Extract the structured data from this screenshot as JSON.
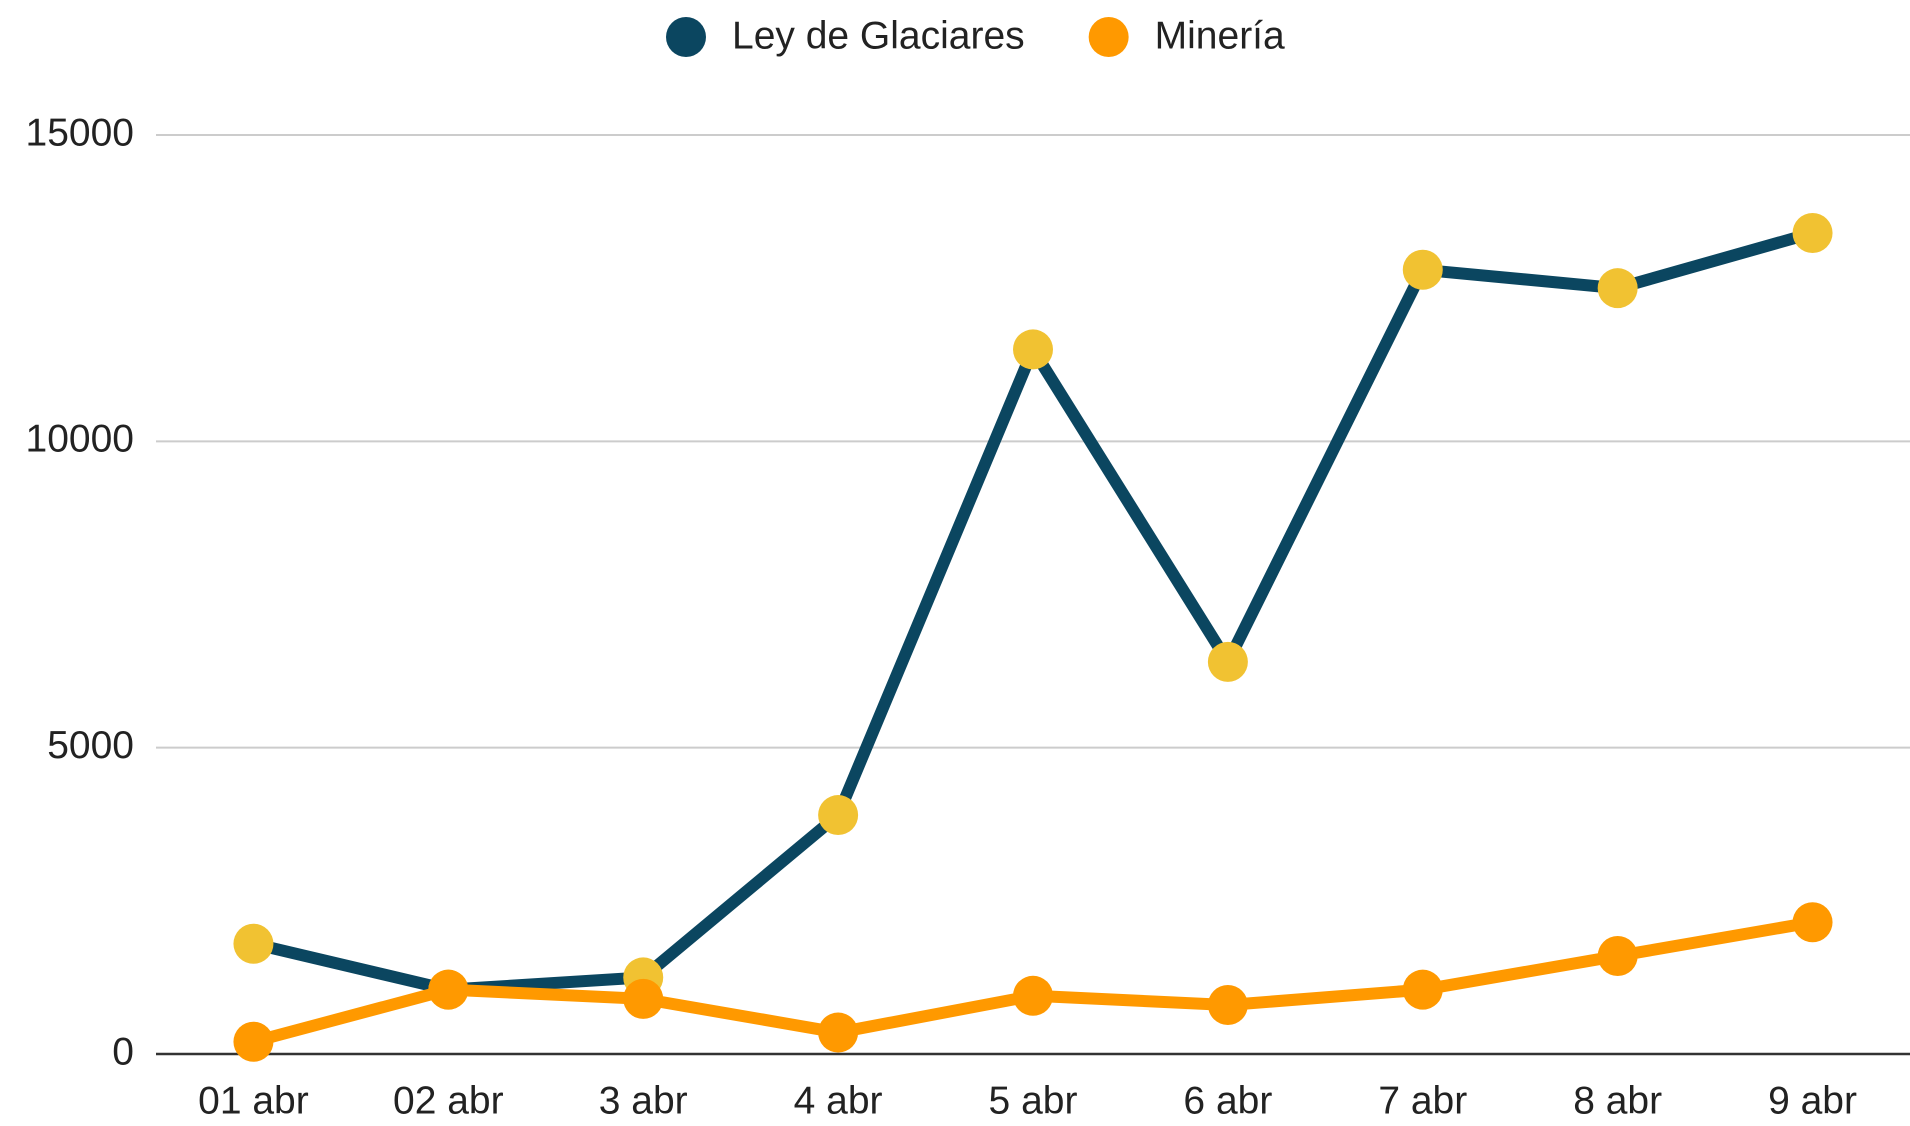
{
  "chart_data": {
    "type": "line",
    "categories": [
      "01 abr",
      "02 abr",
      "3 abr",
      "4 abr",
      "5 abr",
      "6 abr",
      "7 abr",
      "8 abr",
      "9 abr"
    ],
    "series": [
      {
        "name": "Ley de Glaciares",
        "color": "#0b4660",
        "marker_color": "#f1c232",
        "values": [
          1800,
          1050,
          1250,
          3900,
          11500,
          6400,
          12800,
          12500,
          13400
        ]
      },
      {
        "name": "Minería",
        "color": "#ff9900",
        "marker_color": "#ff9900",
        "values": [
          200,
          1050,
          900,
          350,
          950,
          800,
          1050,
          1600,
          2150
        ]
      }
    ],
    "ylim": [
      0,
      15000
    ],
    "yticks": [
      0,
      5000,
      10000,
      15000
    ],
    "grid": true,
    "legend": "top"
  }
}
